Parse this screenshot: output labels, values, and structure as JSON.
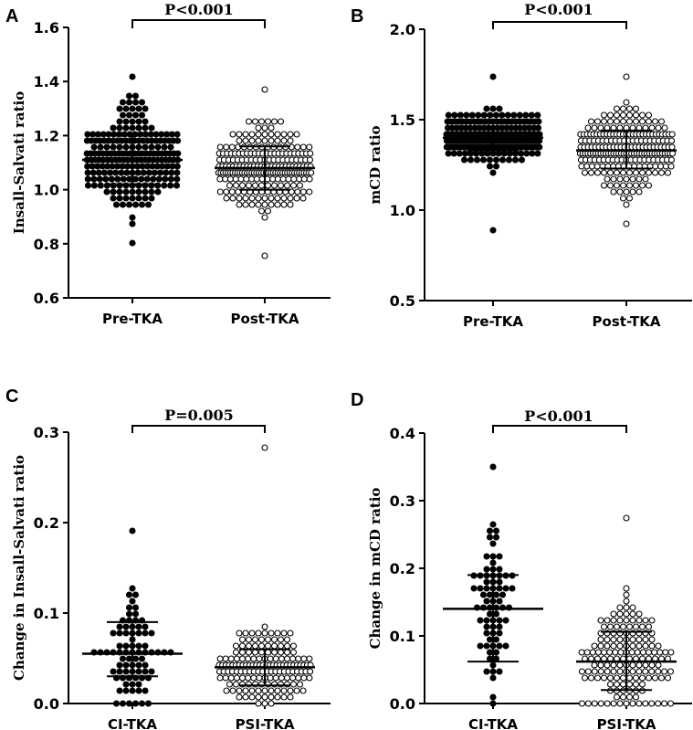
{
  "chart_data": [
    {
      "panel": "A",
      "type": "scatter",
      "subtype": "dot-plot",
      "ylabel": "Insall-Salvati ratio",
      "ylim": [
        0.6,
        1.6
      ],
      "yticks": [
        0.6,
        0.8,
        1.0,
        1.2,
        1.4,
        1.6
      ],
      "ytick_labels": [
        "0.6",
        "0.8",
        "1.0",
        "1.2",
        "1.4",
        "1.6"
      ],
      "categories": [
        "Pre-TKA",
        "Post-TKA"
      ],
      "series": [
        {
          "name": "Pre-TKA",
          "marker": "filled",
          "n": 220,
          "min": 0.81,
          "max": 1.41,
          "mean": 1.11,
          "sd_low": 1.02,
          "sd_high": 1.2
        },
        {
          "name": "Post-TKA",
          "marker": "open",
          "n": 230,
          "min": 0.75,
          "max": 1.38,
          "mean": 1.08,
          "sd_low": 1.0,
          "sd_high": 1.16
        }
      ],
      "annotation": "P<0.001"
    },
    {
      "panel": "B",
      "type": "scatter",
      "subtype": "dot-plot",
      "ylabel": "mCD ratio",
      "ylim": [
        0.5,
        2.0
      ],
      "yticks": [
        0.5,
        1.0,
        1.5,
        2.0
      ],
      "ytick_labels": [
        "0.5",
        "1.0",
        "1.5",
        "2.0"
      ],
      "categories": [
        "Pre-TKA",
        "Post-TKA"
      ],
      "series": [
        {
          "name": "Pre-TKA",
          "marker": "filled",
          "n": 230,
          "min": 0.89,
          "max": 1.74,
          "mean": 1.4,
          "sd_low": 1.33,
          "sd_high": 1.46
        },
        {
          "name": "Post-TKA",
          "marker": "open",
          "n": 230,
          "min": 0.91,
          "max": 1.74,
          "mean": 1.33,
          "sd_low": 1.23,
          "sd_high": 1.44
        }
      ],
      "annotation": "P<0.001"
    },
    {
      "panel": "C",
      "type": "scatter",
      "subtype": "dot-plot",
      "ylabel": "Change in Insall-Salvati ratio",
      "ylim": [
        0.0,
        0.3
      ],
      "yticks": [
        0.0,
        0.1,
        0.2,
        0.3
      ],
      "ytick_labels": [
        "0.0",
        "0.1",
        "0.2",
        "0.3"
      ],
      "categories": [
        "CI-TKA",
        "PSI-TKA"
      ],
      "series": [
        {
          "name": "CI-TKA",
          "marker": "filled",
          "n": 80,
          "min": 0.0,
          "max": 0.19,
          "mean": 0.055,
          "sd_low": 0.03,
          "sd_high": 0.09
        },
        {
          "name": "PSI-TKA",
          "marker": "open",
          "n": 160,
          "min": 0.0,
          "max": 0.28,
          "mean": 0.04,
          "sd_low": 0.02,
          "sd_high": 0.06
        }
      ],
      "annotation": "P=0.005"
    },
    {
      "panel": "D",
      "type": "scatter",
      "subtype": "dot-plot",
      "ylabel": "Change in mCD ratio",
      "ylim": [
        0.0,
        0.4
      ],
      "yticks": [
        0.0,
        0.1,
        0.2,
        0.3,
        0.4
      ],
      "ytick_labels": [
        "0.0",
        "0.1",
        "0.2",
        "0.3",
        "0.4"
      ],
      "categories": [
        "CI-TKA",
        "PSI-TKA"
      ],
      "series": [
        {
          "name": "CI-TKA",
          "marker": "filled",
          "n": 75,
          "min": 0.0,
          "max": 0.35,
          "mean": 0.14,
          "sd_low": 0.062,
          "sd_high": 0.19
        },
        {
          "name": "PSI-TKA",
          "marker": "open",
          "n": 160,
          "min": 0.0,
          "max": 0.27,
          "mean": 0.062,
          "sd_low": 0.02,
          "sd_high": 0.106
        }
      ],
      "annotation": "P<0.001"
    }
  ]
}
